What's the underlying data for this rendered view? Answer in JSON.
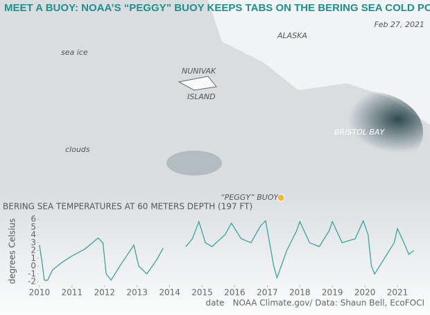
{
  "header": {
    "title": "MEET A BUOY: NOAA’S “PEGGY” BUOY KEEPS TABS ON THE BERING SEA COLD POOL",
    "date": "Feb 27, 2021"
  },
  "map_labels": {
    "alaska": "ALASKA",
    "sea_ice": "sea ice",
    "nunivak": [
      "NUNIVAK",
      "ISLAND"
    ],
    "bristol": "BRISTOL BAY",
    "clouds": "clouds",
    "buoy": "“PEGGY” BUOY"
  },
  "credit": "NOAA Climate.gov/ Data: Shaun Bell, EcoFOCI",
  "chart_data": {
    "type": "line",
    "title": "BERING SEA TEMPERATURES AT 60 METERS DEPTH (197 FT)",
    "x_label": "date",
    "y_label": "degrees Celsius",
    "color": "#3aa39c",
    "x": [
      2010.0,
      2010.08,
      2010.15,
      2010.25,
      2010.4,
      2010.7,
      2011.0,
      2011.4,
      2011.8,
      2011.95,
      2012.05,
      2012.2,
      2012.5,
      2012.9,
      2013.05,
      2013.3,
      2013.6,
      2013.8,
      2014.1,
      2014.5,
      2014.7,
      2014.9,
      2015.1,
      2015.3,
      2015.7,
      2015.9,
      2016.2,
      2016.5,
      2016.8,
      2016.95,
      2017.2,
      2017.3,
      2017.6,
      2017.9,
      2018.0,
      2018.3,
      2018.6,
      2018.9,
      2019.0,
      2019.3,
      2019.7,
      2019.95,
      2020.1,
      2020.2,
      2020.3,
      2020.6,
      2020.9,
      2021.0,
      2021.2,
      2021.35,
      2021.5
    ],
    "values": [
      2.7,
      0.5,
      -1.8,
      -1.8,
      -0.5,
      0.5,
      1.3,
      2.2,
      3.6,
      3.0,
      -1.0,
      -1.8,
      0.2,
      2.7,
      0.0,
      -1.0,
      0.8,
      2.3,
      null,
      2.5,
      3.5,
      5.7,
      3.0,
      2.5,
      4.0,
      5.5,
      3.5,
      3.0,
      5.2,
      5.8,
      0.0,
      -1.5,
      2.0,
      4.5,
      5.7,
      3.0,
      2.5,
      4.5,
      5.7,
      3.0,
      3.5,
      5.8,
      4.0,
      0.0,
      -1.0,
      1.0,
      3.0,
      4.8,
      3.0,
      1.5,
      2.0
    ],
    "xlim": [
      2009.64,
      2021.83
    ],
    "ylim": [
      -2.4,
      6.4
    ],
    "xticks": [
      2010,
      2011,
      2012,
      2013,
      2014,
      2015,
      2016,
      2017,
      2018,
      2019,
      2020,
      2021
    ],
    "yticks": [
      -2,
      -1,
      0,
      1,
      2,
      3,
      4,
      5,
      6
    ]
  }
}
